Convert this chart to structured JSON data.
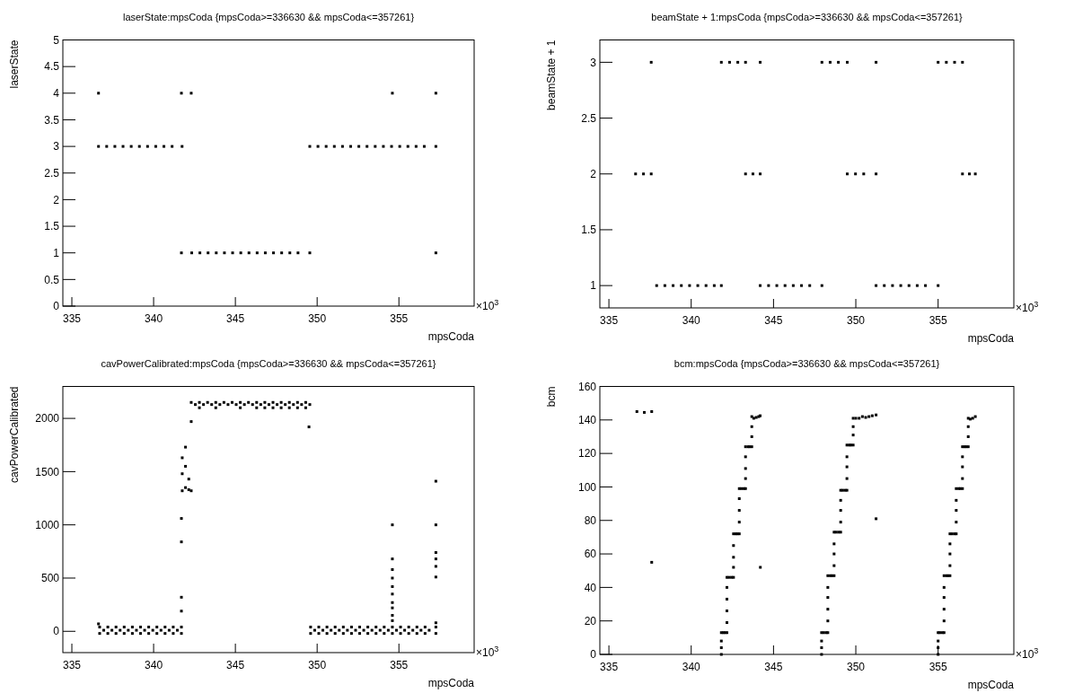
{
  "chart_data": [
    {
      "type": "scatter",
      "title": "laserState:mpsCoda {mpsCoda>=336630 && mpsCoda<=357261}",
      "xlabel": "mpsCoda",
      "ylabel": "laserState",
      "annotations": [
        "×10$^{3}$"
      ],
      "xlim": [
        334.45,
        359.6
      ],
      "xticks": [
        335,
        340,
        345,
        350,
        355
      ],
      "ylim": [
        0,
        5
      ],
      "yticks": [
        0,
        0.5,
        1,
        1.5,
        2,
        2.5,
        3,
        3.5,
        4,
        4.5,
        5
      ],
      "series": [
        {
          "color": "#000000",
          "x": [
            336.63,
            337.13,
            337.63,
            338.13,
            338.63,
            339.13,
            339.63,
            340.13,
            340.63,
            341.13,
            341.74,
            336.63,
            341.7,
            342.3,
            354.6,
            357.26,
            341.7,
            342.33,
            342.83,
            343.33,
            343.83,
            344.33,
            344.83,
            345.33,
            345.83,
            346.33,
            346.83,
            347.33,
            347.83,
            348.33,
            348.83,
            349.55,
            357.26,
            349.55,
            350.05,
            350.55,
            351.05,
            351.55,
            352.05,
            352.55,
            353.05,
            353.55,
            354.05,
            354.55,
            355.05,
            355.55,
            356.05,
            356.55,
            357.26
          ],
          "values": [
            3,
            3,
            3,
            3,
            3,
            3,
            3,
            3,
            3,
            3,
            3,
            4,
            4,
            4,
            4,
            4,
            1,
            1,
            1,
            1,
            1,
            1,
            1,
            1,
            1,
            1,
            1,
            1,
            1,
            1,
            1,
            1,
            1,
            3,
            3,
            3,
            3,
            3,
            3,
            3,
            3,
            3,
            3,
            3,
            3,
            3,
            3,
            3,
            3
          ]
        }
      ]
    },
    {
      "type": "scatter",
      "title": "beamState + 1:mpsCoda {mpsCoda>=336630 && mpsCoda<=357261}",
      "xlabel": "mpsCoda",
      "ylabel": "beamState + 1",
      "annotations": [
        "×10$^{3}$"
      ],
      "xlim": [
        334.45,
        359.6
      ],
      "xticks": [
        335,
        340,
        345,
        350,
        355
      ],
      "ylim": [
        0.8,
        3.2
      ],
      "yticks": [
        1,
        1.5,
        2,
        2.5,
        3
      ],
      "series": [
        {
          "color": "#000000",
          "x": [
            336.62,
            337.1,
            337.57,
            337.9,
            338.4,
            338.9,
            339.4,
            339.9,
            340.4,
            340.9,
            341.4,
            341.83,
            337.57,
            341.83,
            342.33,
            342.83,
            343.3,
            343.3,
            343.75,
            344.19,
            344.19,
            344.7,
            345.2,
            345.7,
            346.2,
            346.7,
            347.2,
            347.94,
            344.19,
            347.94,
            348.44,
            348.94,
            349.48,
            349.48,
            349.98,
            350.48,
            351.23,
            351.23,
            351.73,
            352.23,
            352.73,
            353.23,
            353.73,
            354.23,
            355.0,
            351.23,
            355.0,
            355.5,
            356.0,
            356.48,
            356.48,
            356.9,
            357.26
          ],
          "values": [
            2,
            2,
            2,
            1,
            1,
            1,
            1,
            1,
            1,
            1,
            1,
            1,
            3,
            3,
            3,
            3,
            3,
            2,
            2,
            2,
            1,
            1,
            1,
            1,
            1,
            1,
            1,
            1,
            3,
            3,
            3,
            3,
            3,
            2,
            2,
            2,
            2,
            1,
            1,
            1,
            1,
            1,
            1,
            1,
            1,
            3,
            3,
            3,
            3,
            3,
            2,
            2,
            2
          ]
        }
      ]
    },
    {
      "type": "scatter",
      "title": "cavPowerCalibrated:mpsCoda {mpsCoda>=336630 && mpsCoda<=357261}",
      "xlabel": "mpsCoda",
      "ylabel": "cavPowerCalibrated",
      "annotations": [
        "×10$^{3}$"
      ],
      "xlim": [
        334.45,
        359.6
      ],
      "xticks": [
        335,
        340,
        345,
        350,
        355
      ],
      "ylim": [
        -200,
        2300
      ],
      "yticks": [
        0,
        500,
        1000,
        1500,
        2000
      ],
      "series": [
        {
          "color": "#000000",
          "x": [
            336.7,
            337.2,
            337.7,
            338.2,
            338.7,
            339.2,
            339.7,
            340.2,
            340.7,
            341.2,
            341.7,
            349.6,
            350.1,
            350.6,
            351.1,
            351.6,
            352.1,
            352.6,
            353.1,
            353.6,
            354.1,
            354.6,
            355.1,
            355.6,
            356.1,
            356.6,
            357.26,
            336.95,
            337.45,
            337.95,
            338.45,
            338.95,
            339.45,
            339.95,
            340.45,
            340.95,
            341.45,
            349.85,
            350.35,
            350.85,
            351.35,
            351.85,
            352.35,
            352.85,
            353.35,
            353.85,
            354.35,
            354.85,
            355.35,
            355.85,
            356.35,
            356.85,
            336.7,
            337.2,
            337.7,
            338.2,
            338.7,
            339.2,
            339.7,
            340.2,
            340.7,
            341.2,
            341.7,
            349.6,
            350.1,
            350.6,
            351.1,
            351.6,
            352.1,
            352.6,
            353.1,
            353.6,
            354.1,
            354.6,
            355.1,
            355.6,
            356.1,
            356.6,
            357.26,
            342.3,
            342.8,
            343.3,
            343.8,
            344.3,
            344.8,
            345.3,
            345.8,
            346.3,
            346.8,
            347.3,
            347.8,
            348.3,
            348.8,
            349.3,
            342.55,
            343.05,
            343.55,
            344.05,
            344.55,
            345.05,
            345.55,
            346.05,
            346.55,
            347.05,
            347.55,
            348.05,
            348.55,
            349.05,
            349.55,
            342.8,
            343.8,
            345.3,
            346.3,
            346.8,
            347.3,
            347.8,
            348.3,
            348.8,
            349.3,
            336.63,
            341.7,
            341.7,
            341.7,
            341.7,
            341.75,
            341.75,
            341.75,
            341.95,
            341.95,
            341.95,
            342.15,
            342.15,
            342.3,
            342.3,
            349.5,
            354.6,
            354.6,
            354.6,
            354.6,
            354.6,
            354.6,
            354.6,
            354.6,
            354.6,
            354.6,
            357.26,
            357.26,
            357.26,
            357.26,
            357.26,
            357.26,
            357.26
          ],
          "values": [
            40,
            40,
            40,
            40,
            40,
            40,
            40,
            40,
            40,
            40,
            40,
            40,
            40,
            40,
            40,
            40,
            40,
            40,
            40,
            40,
            40,
            40,
            40,
            40,
            40,
            40,
            40,
            10,
            10,
            10,
            10,
            10,
            10,
            10,
            10,
            10,
            10,
            10,
            10,
            10,
            10,
            10,
            10,
            10,
            10,
            10,
            10,
            10,
            10,
            10,
            10,
            10,
            -20,
            -20,
            -20,
            -20,
            -20,
            -20,
            -20,
            -20,
            -20,
            -20,
            -20,
            -20,
            -20,
            -20,
            -20,
            -20,
            -20,
            -20,
            -20,
            -20,
            -20,
            -20,
            -20,
            -20,
            -20,
            -20,
            -20,
            2150,
            2150,
            2150,
            2150,
            2150,
            2150,
            2150,
            2150,
            2150,
            2150,
            2150,
            2150,
            2150,
            2150,
            2150,
            2130,
            2130,
            2130,
            2130,
            2130,
            2130,
            2130,
            2130,
            2130,
            2130,
            2130,
            2130,
            2130,
            2130,
            2130,
            2100,
            2100,
            2100,
            2100,
            2100,
            2100,
            2100,
            2100,
            2100,
            2100,
            70,
            1060,
            840,
            320,
            190,
            1320,
            1480,
            1630,
            1350,
            1550,
            1730,
            1330,
            1430,
            1320,
            1970,
            1920,
            1000,
            680,
            580,
            500,
            420,
            350,
            270,
            220,
            150,
            100,
            1410,
            1000,
            740,
            680,
            610,
            510,
            80
          ]
        }
      ]
    },
    {
      "type": "scatter",
      "title": "bcm:mpsCoda {mpsCoda>=336630 && mpsCoda<=357261}",
      "xlabel": "mpsCoda",
      "ylabel": "bcm",
      "annotations": [
        "×10$^{3}$"
      ],
      "xlim": [
        334.45,
        359.6
      ],
      "xticks": [
        335,
        340,
        345,
        350,
        355
      ],
      "ylim": [
        0,
        160
      ],
      "yticks": [
        0,
        20,
        40,
        60,
        80,
        100,
        120,
        140,
        160
      ],
      "series": [
        {
          "color": "#000000",
          "x": [
            336.7,
            337.15,
            337.6,
            337.6,
            344.2,
            351.23,
            341.83,
            341.83,
            341.83,
            341.83,
            341.95,
            342.05,
            342.17,
            342.17,
            342.17,
            342.17,
            342.17,
            342.17,
            342.3,
            342.45,
            342.57,
            342.57,
            342.57,
            342.57,
            342.57,
            342.7,
            342.8,
            342.92,
            342.92,
            342.92,
            342.92,
            342.92,
            343.05,
            343.2,
            343.3,
            343.3,
            343.3,
            343.3,
            343.3,
            343.45,
            343.55,
            343.68,
            343.68,
            343.68,
            343.68,
            343.8,
            343.95,
            344.1,
            344.19,
            347.92,
            347.92,
            347.92,
            347.92,
            348.05,
            348.2,
            348.3,
            348.3,
            348.3,
            348.3,
            348.3,
            348.3,
            348.45,
            348.55,
            348.68,
            348.68,
            348.68,
            348.68,
            348.68,
            348.8,
            348.95,
            349.08,
            349.08,
            349.08,
            349.08,
            349.08,
            349.2,
            349.35,
            349.46,
            349.46,
            349.46,
            349.46,
            349.46,
            349.6,
            349.7,
            349.84,
            349.84,
            349.84,
            349.84,
            350.0,
            350.2,
            350.4,
            350.6,
            350.8,
            351.0,
            351.23,
            355.0,
            355.0,
            355.0,
            355.0,
            355.1,
            355.25,
            355.36,
            355.36,
            355.36,
            355.36,
            355.36,
            355.36,
            355.5,
            355.6,
            355.72,
            355.72,
            355.72,
            355.72,
            355.72,
            355.85,
            356.0,
            356.1,
            356.1,
            356.1,
            356.1,
            356.1,
            356.25,
            356.35,
            356.48,
            356.48,
            356.48,
            356.48,
            356.48,
            356.6,
            356.7,
            356.83,
            356.83,
            356.83,
            356.83,
            356.95,
            357.1,
            357.26
          ],
          "values": [
            145,
            144.5,
            145,
            55,
            52,
            81,
            0,
            4,
            8,
            13,
            13,
            13,
            13,
            19,
            26,
            33,
            40,
            46,
            46,
            46,
            46,
            52,
            58,
            65,
            72,
            72,
            72,
            72,
            79,
            86,
            93,
            99,
            99,
            99,
            99,
            105,
            111,
            118,
            124,
            124,
            124,
            124,
            130,
            136,
            142,
            141,
            141.5,
            142,
            142.5,
            0,
            4,
            8,
            13,
            13,
            13,
            13,
            20,
            27,
            34,
            40,
            47,
            47,
            47,
            47,
            53,
            60,
            66,
            73,
            73,
            73,
            73,
            79,
            86,
            92,
            98,
            98,
            98,
            98,
            105,
            112,
            118,
            125,
            125,
            125,
            125,
            131,
            136,
            141,
            141,
            141,
            142,
            141.5,
            142,
            142.5,
            143,
            0,
            4,
            8,
            13,
            13,
            13,
            13,
            20,
            27,
            34,
            40,
            47,
            47,
            47,
            47,
            53,
            60,
            66,
            72,
            72,
            72,
            72,
            79,
            86,
            92,
            99,
            99,
            99,
            99,
            105,
            112,
            118,
            124,
            124,
            124,
            124,
            130,
            136,
            141,
            140.5,
            141,
            142
          ]
        }
      ]
    }
  ]
}
